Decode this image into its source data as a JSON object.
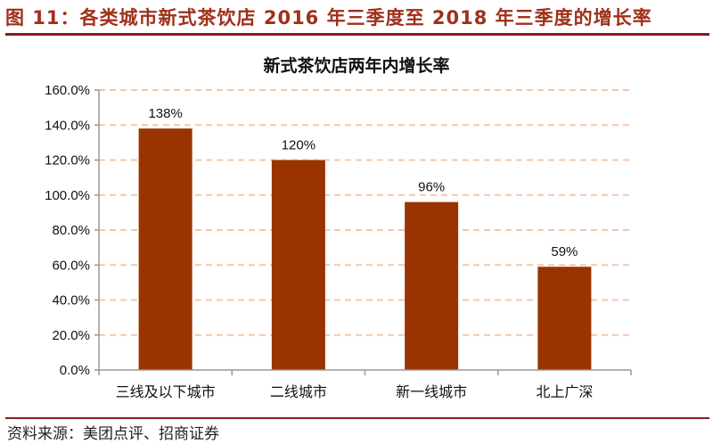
{
  "figure_title": "图 11：各类城市新式茶饮店 2016 年三季度至 2018 年三季度的增长率",
  "source": "资料来源：美团点评、招商证券",
  "colors": {
    "bar": "#993300",
    "title": "#a0301a",
    "grid": "#f4c8a8",
    "rule": "#8b1a1a"
  },
  "chart_data": {
    "type": "bar",
    "title": "新式茶饮店两年内增长率",
    "categories": [
      "三线及以下城市",
      "二线城市",
      "新一线城市",
      "北上广深"
    ],
    "values": [
      138,
      120,
      96,
      59
    ],
    "data_labels": [
      "138%",
      "120%",
      "96%",
      "59%"
    ],
    "ylim": [
      0,
      160
    ],
    "yticks": [
      "0.0%",
      "20.0%",
      "40.0%",
      "60.0%",
      "80.0%",
      "100.0%",
      "120.0%",
      "140.0%",
      "160.0%"
    ],
    "xlabel": "",
    "ylabel": "",
    "grid": "dashed horizontal",
    "legend": "none"
  }
}
